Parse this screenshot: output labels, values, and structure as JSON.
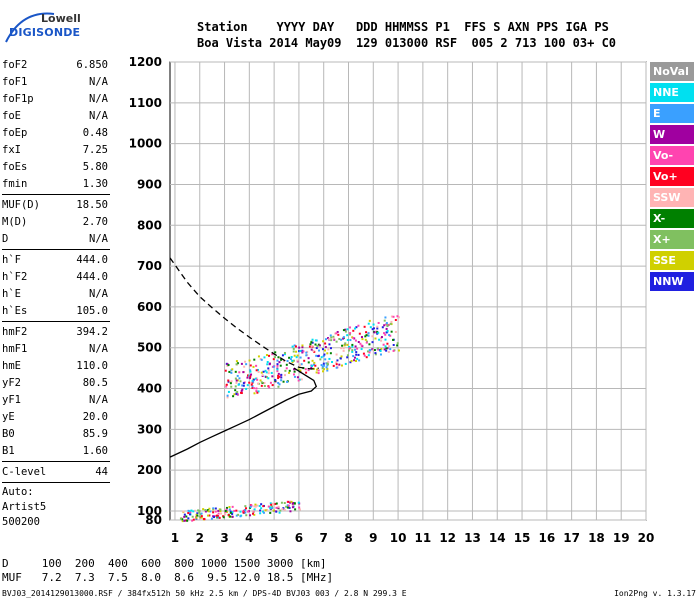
{
  "logo": {
    "line1": "Lowell",
    "line2": "DIGISONDE"
  },
  "header": {
    "line1": "Station    YYYY DAY   DDD HHMMSS P1  FFS S AXN PPS IGA PS",
    "line2": "Boa Vista 2014 May09  129 013000 RSF  005 2 713 100 03+ C0"
  },
  "params": {
    "group1": [
      {
        "label": "foF2",
        "value": "6.850"
      },
      {
        "label": "foF1",
        "value": "N/A"
      },
      {
        "label": "foF1p",
        "value": "N/A"
      },
      {
        "label": "foE",
        "value": "N/A"
      },
      {
        "label": "foEp",
        "value": "0.48"
      },
      {
        "label": "fxI",
        "value": "7.25"
      },
      {
        "label": "foEs",
        "value": "5.80"
      },
      {
        "label": "fmin",
        "value": "1.30"
      }
    ],
    "group2": [
      {
        "label": "MUF(D)",
        "value": "18.50"
      },
      {
        "label": "M(D)",
        "value": "2.70"
      },
      {
        "label": "D",
        "value": "N/A"
      }
    ],
    "group3": [
      {
        "label": "h`F",
        "value": "444.0"
      },
      {
        "label": "h`F2",
        "value": "444.0"
      },
      {
        "label": "h`E",
        "value": "N/A"
      },
      {
        "label": "h`Es",
        "value": "105.0"
      }
    ],
    "group4": [
      {
        "label": "hmF2",
        "value": "394.2"
      },
      {
        "label": "hmF1",
        "value": "N/A"
      },
      {
        "label": "hmE",
        "value": "110.0"
      },
      {
        "label": "yF2",
        "value": "80.5"
      },
      {
        "label": "yF1",
        "value": "N/A"
      },
      {
        "label": "yE",
        "value": "20.0"
      },
      {
        "label": "B0",
        "value": "85.9"
      },
      {
        "label": "B1",
        "value": "1.60"
      }
    ],
    "group5": [
      {
        "label": "C-level",
        "value": "44"
      }
    ],
    "auto_lines": [
      "Auto:",
      "Artist5",
      "500200"
    ]
  },
  "legend": [
    {
      "label": "NoVal",
      "color": "#9a9a9a"
    },
    {
      "label": "NNE",
      "color": "#00e0f0"
    },
    {
      "label": "E",
      "color": "#3aa0ff"
    },
    {
      "label": "W",
      "color": "#a000a0"
    },
    {
      "label": "Vo-",
      "color": "#ff44b0"
    },
    {
      "label": "Vo+",
      "color": "#ff0020"
    },
    {
      "label": "SSW",
      "color": "#ffb4b4"
    },
    {
      "label": "X-",
      "color": "#008000"
    },
    {
      "label": "X+",
      "color": "#80c060"
    },
    {
      "label": "SSE",
      "color": "#d0d000"
    },
    {
      "label": "NNW",
      "color": "#2020e0"
    }
  ],
  "dmuf": {
    "d_line": "D     100  200  400  600  800 1000 1500 3000 [km]",
    "muf_line": "MUF   7.2  7.3  7.5  8.0  8.6  9.5 12.0 18.5 [MHz]"
  },
  "footer": "BVJ03_2014129013000.RSF / 384fx512h 50 kHz 2.5 km / DPS-4D BVJ03 003 / 2.8 N 299.3 E",
  "version": "Ion2Png v. 1.3.17",
  "chart_data": {
    "type": "scatter",
    "title": "",
    "xlabel": "",
    "ylabel": "",
    "xlim": [
      0.8,
      20
    ],
    "ylim": [
      80,
      1200
    ],
    "x_ticks": [
      1,
      2,
      3,
      4,
      5,
      6,
      7,
      8,
      9,
      10,
      11,
      12,
      13,
      14,
      15,
      16,
      17,
      18,
      19,
      20
    ],
    "y_ticks": [
      80,
      100,
      200,
      300,
      400,
      500,
      600,
      700,
      800,
      900,
      1000,
      1100,
      1200
    ],
    "x_tick_labels": [
      "1",
      "2",
      "3",
      "4",
      "5",
      "6",
      "7",
      "8",
      "9",
      "10",
      "11",
      "12",
      "13",
      "14",
      "15",
      "16",
      "17",
      "18",
      "19",
      "20"
    ],
    "y_tick_labels": [
      "80",
      "100",
      "200",
      "300",
      "400",
      "500",
      "600",
      "700",
      "800",
      "900",
      "1000",
      "1100",
      "1200"
    ],
    "grid": true,
    "series": [
      {
        "values": [
          [
            0.8,
            720
          ],
          [
            1.5,
            660
          ],
          [
            2.0,
            625
          ],
          [
            2.5,
            598
          ],
          [
            3.0,
            572
          ],
          [
            3.5,
            548
          ],
          [
            4.0,
            526
          ],
          [
            4.5,
            505
          ],
          [
            5.0,
            485
          ],
          [
            5.5,
            466
          ],
          [
            6.0,
            452
          ],
          [
            6.5,
            448
          ],
          [
            6.8,
            450
          ]
        ],
        "style": "dashed"
      },
      {
        "values": [
          [
            0.8,
            232
          ],
          [
            1.5,
            252
          ],
          [
            2.0,
            268
          ],
          [
            2.5,
            282
          ],
          [
            3.0,
            296
          ],
          [
            3.5,
            310
          ],
          [
            4.0,
            324
          ],
          [
            4.5,
            340
          ],
          [
            5.0,
            356
          ],
          [
            5.5,
            372
          ],
          [
            6.0,
            386
          ],
          [
            6.5,
            394
          ],
          [
            6.7,
            405
          ],
          [
            6.6,
            420
          ],
          [
            6.2,
            435
          ],
          [
            5.8,
            450
          ]
        ],
        "style": "solid"
      }
    ],
    "echo_traces": [
      {
        "description": "F2 echo band",
        "points": [
          [
            3.0,
            405
          ],
          [
            4.0,
            415
          ],
          [
            5.0,
            430
          ],
          [
            6.0,
            450
          ],
          [
            7.0,
            470
          ],
          [
            8.0,
            490
          ],
          [
            9.0,
            510
          ],
          [
            10.0,
            520
          ]
        ]
      },
      {
        "description": "Es/E echo band",
        "points": [
          [
            1.2,
            85
          ],
          [
            2.0,
            90
          ],
          [
            3.0,
            95
          ],
          [
            4.0,
            100
          ],
          [
            5.0,
            105
          ],
          [
            6.0,
            110
          ]
        ]
      }
    ],
    "legend_position": "right"
  }
}
